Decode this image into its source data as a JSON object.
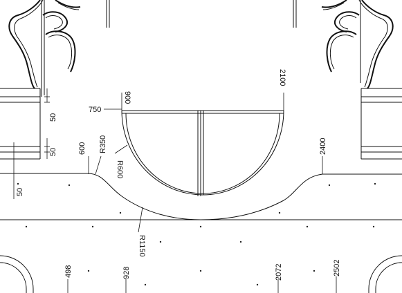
{
  "drawing": {
    "colors": {
      "line": "#111111",
      "background": "#ffffff"
    },
    "dimensions": {
      "d900": "900",
      "d2100": "2100",
      "d750": "750",
      "d600": "600",
      "d2400": "2400",
      "r350": "R350",
      "r600": "R600",
      "r1150": "R1150",
      "d50a": "50",
      "d50b": "50",
      "d50c": "50",
      "d498": "498",
      "d928": "928",
      "d2072": "2072",
      "d2502": "2502"
    }
  }
}
